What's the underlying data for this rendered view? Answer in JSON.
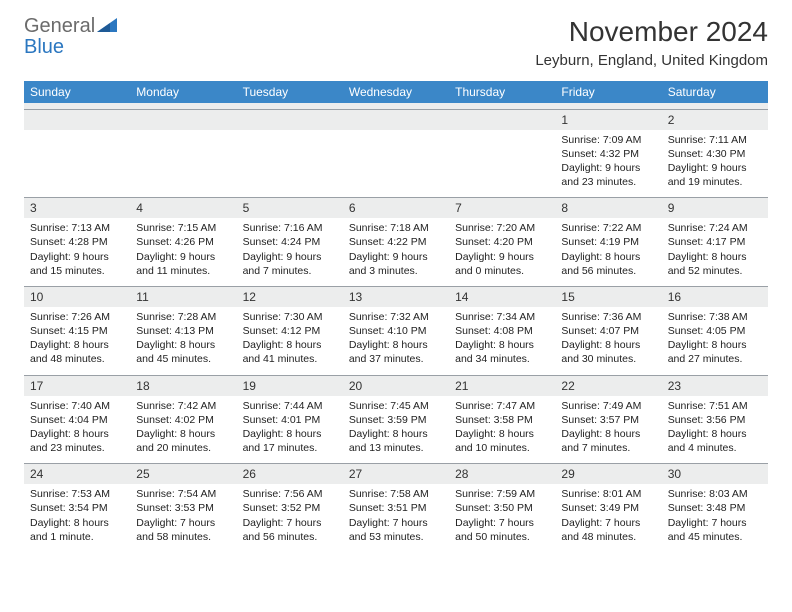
{
  "brand": {
    "name_part1": "General",
    "name_part2": "Blue",
    "logo_color": "#2b77c0",
    "text_color": "#6b6b6b"
  },
  "title": "November 2024",
  "location": "Leyburn, England, United Kingdom",
  "colors": {
    "header_bg": "#3b87c8",
    "header_fg": "#ffffff",
    "daybar_bg": "#eceded",
    "border": "#9aa0a6",
    "text": "#222222"
  },
  "day_headers": [
    "Sunday",
    "Monday",
    "Tuesday",
    "Wednesday",
    "Thursday",
    "Friday",
    "Saturday"
  ],
  "weeks": [
    [
      null,
      null,
      null,
      null,
      null,
      {
        "n": "1",
        "sr": "Sunrise: 7:09 AM",
        "ss": "Sunset: 4:32 PM",
        "dl": "Daylight: 9 hours and 23 minutes."
      },
      {
        "n": "2",
        "sr": "Sunrise: 7:11 AM",
        "ss": "Sunset: 4:30 PM",
        "dl": "Daylight: 9 hours and 19 minutes."
      }
    ],
    [
      {
        "n": "3",
        "sr": "Sunrise: 7:13 AM",
        "ss": "Sunset: 4:28 PM",
        "dl": "Daylight: 9 hours and 15 minutes."
      },
      {
        "n": "4",
        "sr": "Sunrise: 7:15 AM",
        "ss": "Sunset: 4:26 PM",
        "dl": "Daylight: 9 hours and 11 minutes."
      },
      {
        "n": "5",
        "sr": "Sunrise: 7:16 AM",
        "ss": "Sunset: 4:24 PM",
        "dl": "Daylight: 9 hours and 7 minutes."
      },
      {
        "n": "6",
        "sr": "Sunrise: 7:18 AM",
        "ss": "Sunset: 4:22 PM",
        "dl": "Daylight: 9 hours and 3 minutes."
      },
      {
        "n": "7",
        "sr": "Sunrise: 7:20 AM",
        "ss": "Sunset: 4:20 PM",
        "dl": "Daylight: 9 hours and 0 minutes."
      },
      {
        "n": "8",
        "sr": "Sunrise: 7:22 AM",
        "ss": "Sunset: 4:19 PM",
        "dl": "Daylight: 8 hours and 56 minutes."
      },
      {
        "n": "9",
        "sr": "Sunrise: 7:24 AM",
        "ss": "Sunset: 4:17 PM",
        "dl": "Daylight: 8 hours and 52 minutes."
      }
    ],
    [
      {
        "n": "10",
        "sr": "Sunrise: 7:26 AM",
        "ss": "Sunset: 4:15 PM",
        "dl": "Daylight: 8 hours and 48 minutes."
      },
      {
        "n": "11",
        "sr": "Sunrise: 7:28 AM",
        "ss": "Sunset: 4:13 PM",
        "dl": "Daylight: 8 hours and 45 minutes."
      },
      {
        "n": "12",
        "sr": "Sunrise: 7:30 AM",
        "ss": "Sunset: 4:12 PM",
        "dl": "Daylight: 8 hours and 41 minutes."
      },
      {
        "n": "13",
        "sr": "Sunrise: 7:32 AM",
        "ss": "Sunset: 4:10 PM",
        "dl": "Daylight: 8 hours and 37 minutes."
      },
      {
        "n": "14",
        "sr": "Sunrise: 7:34 AM",
        "ss": "Sunset: 4:08 PM",
        "dl": "Daylight: 8 hours and 34 minutes."
      },
      {
        "n": "15",
        "sr": "Sunrise: 7:36 AM",
        "ss": "Sunset: 4:07 PM",
        "dl": "Daylight: 8 hours and 30 minutes."
      },
      {
        "n": "16",
        "sr": "Sunrise: 7:38 AM",
        "ss": "Sunset: 4:05 PM",
        "dl": "Daylight: 8 hours and 27 minutes."
      }
    ],
    [
      {
        "n": "17",
        "sr": "Sunrise: 7:40 AM",
        "ss": "Sunset: 4:04 PM",
        "dl": "Daylight: 8 hours and 23 minutes."
      },
      {
        "n": "18",
        "sr": "Sunrise: 7:42 AM",
        "ss": "Sunset: 4:02 PM",
        "dl": "Daylight: 8 hours and 20 minutes."
      },
      {
        "n": "19",
        "sr": "Sunrise: 7:44 AM",
        "ss": "Sunset: 4:01 PM",
        "dl": "Daylight: 8 hours and 17 minutes."
      },
      {
        "n": "20",
        "sr": "Sunrise: 7:45 AM",
        "ss": "Sunset: 3:59 PM",
        "dl": "Daylight: 8 hours and 13 minutes."
      },
      {
        "n": "21",
        "sr": "Sunrise: 7:47 AM",
        "ss": "Sunset: 3:58 PM",
        "dl": "Daylight: 8 hours and 10 minutes."
      },
      {
        "n": "22",
        "sr": "Sunrise: 7:49 AM",
        "ss": "Sunset: 3:57 PM",
        "dl": "Daylight: 8 hours and 7 minutes."
      },
      {
        "n": "23",
        "sr": "Sunrise: 7:51 AM",
        "ss": "Sunset: 3:56 PM",
        "dl": "Daylight: 8 hours and 4 minutes."
      }
    ],
    [
      {
        "n": "24",
        "sr": "Sunrise: 7:53 AM",
        "ss": "Sunset: 3:54 PM",
        "dl": "Daylight: 8 hours and 1 minute."
      },
      {
        "n": "25",
        "sr": "Sunrise: 7:54 AM",
        "ss": "Sunset: 3:53 PM",
        "dl": "Daylight: 7 hours and 58 minutes."
      },
      {
        "n": "26",
        "sr": "Sunrise: 7:56 AM",
        "ss": "Sunset: 3:52 PM",
        "dl": "Daylight: 7 hours and 56 minutes."
      },
      {
        "n": "27",
        "sr": "Sunrise: 7:58 AM",
        "ss": "Sunset: 3:51 PM",
        "dl": "Daylight: 7 hours and 53 minutes."
      },
      {
        "n": "28",
        "sr": "Sunrise: 7:59 AM",
        "ss": "Sunset: 3:50 PM",
        "dl": "Daylight: 7 hours and 50 minutes."
      },
      {
        "n": "29",
        "sr": "Sunrise: 8:01 AM",
        "ss": "Sunset: 3:49 PM",
        "dl": "Daylight: 7 hours and 48 minutes."
      },
      {
        "n": "30",
        "sr": "Sunrise: 8:03 AM",
        "ss": "Sunset: 3:48 PM",
        "dl": "Daylight: 7 hours and 45 minutes."
      }
    ]
  ]
}
